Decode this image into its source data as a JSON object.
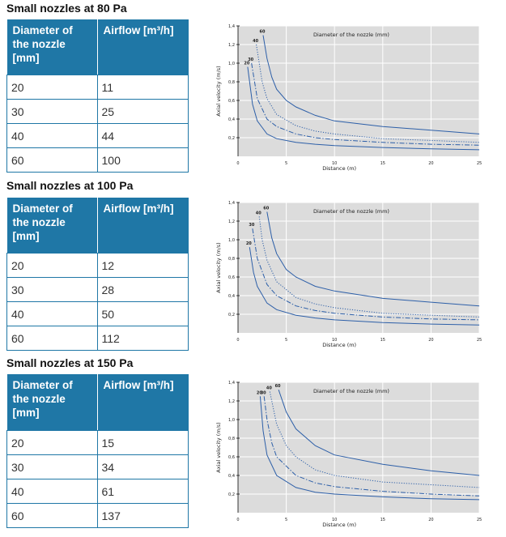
{
  "sections": [
    {
      "title": "Small nozzles at 80 Pa",
      "table": {
        "headers": [
          "Diameter of the  nozzle [mm]",
          "Airflow [m³/h]"
        ],
        "rows": [
          [
            "20",
            "11"
          ],
          [
            "30",
            "25"
          ],
          [
            "40",
            "44"
          ],
          [
            "60",
            "100"
          ]
        ]
      }
    },
    {
      "title": "Small nozzles at 100 Pa",
      "table": {
        "headers": [
          "Diameter of the nozzle [mm]",
          "Airflow [m³/h]"
        ],
        "rows": [
          [
            "20",
            "12"
          ],
          [
            "30",
            "28"
          ],
          [
            "40",
            "50"
          ],
          [
            "60",
            "112"
          ]
        ]
      }
    },
    {
      "title": "Small nozzles at 150 Pa",
      "table": {
        "headers": [
          "Diameter of the nozzle [mm]",
          "Airflow [m³/h]"
        ],
        "rows": [
          [
            "20",
            "15"
          ],
          [
            "30",
            "34"
          ],
          [
            "40",
            "61"
          ],
          [
            "60",
            "137"
          ]
        ]
      }
    }
  ],
  "chart_data": [
    {
      "type": "line",
      "title": "",
      "legend_title": "Diameter of the nozzle (mm)",
      "xlabel": "Distance (m)",
      "ylabel": "Axial velocity (m/s)",
      "xlim": [
        0,
        25
      ],
      "ylim": [
        0,
        1.4
      ],
      "xticks": [
        "0",
        "5",
        "10",
        "15",
        "20",
        "25"
      ],
      "yticks": [
        "0,2",
        "0,4",
        "0,6",
        "0,8",
        "1,0",
        "1,2",
        "1,4"
      ],
      "grid": true,
      "background": "#dcdcdc",
      "series": [
        {
          "name": "20",
          "style": "solid",
          "x": [
            1.0,
            1.5,
            2,
            3,
            4,
            6,
            8,
            10,
            15,
            20,
            25
          ],
          "y": [
            0.96,
            0.56,
            0.38,
            0.24,
            0.19,
            0.15,
            0.13,
            0.115,
            0.095,
            0.08,
            0.07
          ]
        },
        {
          "name": "30",
          "style": "dashdot",
          "x": [
            1.4,
            2,
            3,
            4,
            6,
            8,
            10,
            15,
            20,
            25
          ],
          "y": [
            1.0,
            0.62,
            0.4,
            0.32,
            0.24,
            0.2,
            0.18,
            0.15,
            0.13,
            0.12
          ]
        },
        {
          "name": "40",
          "style": "dotted",
          "x": [
            1.9,
            2.5,
            3,
            4,
            6,
            8,
            10,
            15,
            20,
            25
          ],
          "y": [
            1.2,
            0.8,
            0.62,
            0.45,
            0.33,
            0.27,
            0.24,
            0.19,
            0.17,
            0.15
          ]
        },
        {
          "name": "60",
          "style": "solid",
          "x": [
            2.6,
            3,
            3.5,
            4,
            5,
            6,
            8,
            10,
            15,
            20,
            25
          ],
          "y": [
            1.3,
            1.05,
            0.85,
            0.72,
            0.6,
            0.53,
            0.44,
            0.38,
            0.32,
            0.28,
            0.24
          ]
        }
      ]
    },
    {
      "type": "line",
      "title": "",
      "legend_title": "Diameter of the nozzle (mm)",
      "xlabel": "Distance (m)",
      "ylabel": "Axial velocity (m/s)",
      "xlim": [
        0,
        25
      ],
      "ylim": [
        0,
        1.4
      ],
      "xticks": [
        "0",
        "5",
        "10",
        "15",
        "20",
        "25"
      ],
      "yticks": [
        "0,2",
        "0,4",
        "0,6",
        "0,8",
        "1,0",
        "1,2",
        "1,4"
      ],
      "grid": true,
      "background": "#dcdcdc",
      "series": [
        {
          "name": "20",
          "style": "solid",
          "x": [
            1.2,
            1.6,
            2,
            3,
            4,
            6,
            8,
            10,
            15,
            20,
            25
          ],
          "y": [
            0.92,
            0.65,
            0.5,
            0.32,
            0.25,
            0.19,
            0.16,
            0.14,
            0.11,
            0.095,
            0.085
          ]
        },
        {
          "name": "30",
          "style": "dashdot",
          "x": [
            1.5,
            2,
            3,
            4,
            6,
            8,
            10,
            15,
            20,
            25
          ],
          "y": [
            1.12,
            0.8,
            0.52,
            0.4,
            0.29,
            0.24,
            0.21,
            0.17,
            0.15,
            0.14
          ]
        },
        {
          "name": "40",
          "style": "dotted",
          "x": [
            2.2,
            2.5,
            3,
            4,
            6,
            8,
            10,
            15,
            20,
            25
          ],
          "y": [
            1.25,
            1.0,
            0.78,
            0.55,
            0.38,
            0.31,
            0.27,
            0.21,
            0.19,
            0.17
          ]
        },
        {
          "name": "60",
          "style": "solid",
          "x": [
            3.0,
            3.5,
            4,
            5,
            6,
            8,
            10,
            15,
            20,
            25
          ],
          "y": [
            1.3,
            1.02,
            0.85,
            0.68,
            0.6,
            0.5,
            0.45,
            0.37,
            0.33,
            0.29
          ]
        }
      ]
    },
    {
      "type": "line",
      "title": "",
      "legend_title": "Diameter of the nozzle (mm)",
      "xlabel": "Distance (m)",
      "ylabel": "Axial velocity (m/s)",
      "xlim": [
        0,
        25
      ],
      "ylim": [
        0,
        1.4
      ],
      "xticks": [
        "0",
        "5",
        "10",
        "15",
        "20",
        "25"
      ],
      "yticks": [
        "0,2",
        "0,4",
        "0,6",
        "0,8",
        "1,0",
        "1,2",
        "1,4"
      ],
      "grid": true,
      "background": "#dcdcdc",
      "series": [
        {
          "name": "20",
          "style": "solid",
          "x": [
            2.3,
            2.6,
            3,
            4,
            6,
            8,
            10,
            15,
            20,
            25
          ],
          "y": [
            1.25,
            0.88,
            0.62,
            0.4,
            0.27,
            0.22,
            0.2,
            0.17,
            0.15,
            0.14
          ]
        },
        {
          "name": "30",
          "style": "dashdot",
          "x": [
            2.7,
            3,
            3.5,
            4,
            6,
            8,
            10,
            15,
            20,
            25
          ],
          "y": [
            1.25,
            1.0,
            0.75,
            0.6,
            0.4,
            0.32,
            0.28,
            0.23,
            0.2,
            0.18
          ]
        },
        {
          "name": "40",
          "style": "dotted",
          "x": [
            3.3,
            4,
            5,
            6,
            8,
            10,
            15,
            20,
            25
          ],
          "y": [
            1.3,
            0.95,
            0.72,
            0.6,
            0.46,
            0.4,
            0.33,
            0.3,
            0.27
          ]
        },
        {
          "name": "60",
          "style": "solid",
          "x": [
            4.2,
            5,
            6,
            8,
            10,
            15,
            20,
            25
          ],
          "y": [
            1.32,
            1.08,
            0.9,
            0.72,
            0.62,
            0.52,
            0.45,
            0.4
          ]
        }
      ]
    }
  ]
}
